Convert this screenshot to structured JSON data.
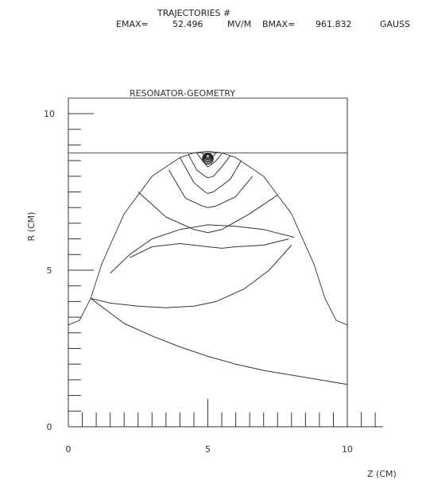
{
  "header": {
    "line1": "TRAJECTORIES #",
    "emax_label": "EMAX=",
    "emax_value": "52.496",
    "emax_unit": "MV/M",
    "bmax_label": "BMAX=",
    "bmax_value": "961.832",
    "bmax_unit": "GAUSS"
  },
  "chart_data": {
    "type": "line",
    "title": "RESONATOR-GEOMETRY",
    "xlabel": "Z (CM)",
    "ylabel": "R (CM)",
    "xlim": [
      0,
      10
    ],
    "ylim": [
      0,
      10
    ],
    "x_ticks": [
      0,
      5,
      10
    ],
    "y_ticks": [
      0,
      5,
      10
    ],
    "grid": false,
    "series": [
      {
        "role": "cavity-wall",
        "x": [
          0,
          0.4,
          0.8,
          1.2,
          2,
          3,
          4,
          4.5,
          5,
          5.5,
          6,
          7,
          8,
          8.8,
          9.2,
          9.6,
          10
        ],
        "y": [
          3.25,
          3.4,
          4.1,
          5.2,
          6.8,
          8.0,
          8.6,
          8.75,
          8.8,
          8.75,
          8.6,
          8.0,
          6.8,
          5.2,
          4.1,
          3.4,
          3.25
        ]
      },
      {
        "role": "beam-pipe",
        "x": [
          0,
          10
        ],
        "y": [
          8.75,
          8.75
        ]
      },
      {
        "role": "boundary",
        "x": [
          0,
          10
        ],
        "y": [
          10.5,
          10.5
        ]
      },
      {
        "role": "trajectory",
        "x": [
          0.8,
          2,
          3,
          4,
          5,
          6,
          7,
          8,
          9,
          10
        ],
        "y": [
          4.1,
          3.3,
          2.9,
          2.55,
          2.25,
          2.0,
          1.8,
          1.65,
          1.5,
          1.35
        ]
      },
      {
        "role": "trajectory",
        "x": [
          0.8,
          1.5,
          2.5,
          3.5,
          4.5,
          5.3,
          6.3,
          7.2,
          8
        ],
        "y": [
          4.1,
          3.95,
          3.85,
          3.8,
          3.85,
          4.0,
          4.4,
          5.0,
          5.8
        ]
      },
      {
        "role": "trajectory",
        "x": [
          1.5,
          2.2,
          3,
          4,
          5,
          6,
          7,
          8.1
        ],
        "y": [
          4.9,
          5.5,
          6.0,
          6.3,
          6.45,
          6.4,
          6.3,
          6.05
        ]
      },
      {
        "role": "trajectory",
        "x": [
          2.2,
          3,
          4,
          5,
          5.5,
          6,
          7,
          7.9
        ],
        "y": [
          5.4,
          5.75,
          5.85,
          5.75,
          5.7,
          5.75,
          5.8,
          6.0
        ]
      },
      {
        "role": "trajectory",
        "x": [
          2.5,
          3.5,
          4.5,
          5,
          5.5,
          6.5,
          7.5
        ],
        "y": [
          7.5,
          6.7,
          6.3,
          6.2,
          6.3,
          6.8,
          7.4
        ]
      },
      {
        "role": "trajectory",
        "x": [
          3.6,
          4.2,
          4.8,
          5.0,
          5.3,
          6.0,
          6.6
        ],
        "y": [
          8.2,
          7.3,
          7.05,
          7.0,
          7.05,
          7.35,
          8.0
        ]
      },
      {
        "role": "trajectory",
        "x": [
          4.0,
          4.5,
          4.9,
          5.0,
          5.2,
          5.8,
          6.2
        ],
        "y": [
          8.6,
          7.8,
          7.5,
          7.45,
          7.5,
          7.9,
          8.5
        ]
      },
      {
        "role": "trajectory",
        "x": [
          4.3,
          4.6,
          4.9,
          5.0,
          5.2,
          5.5,
          5.8
        ],
        "y": [
          8.7,
          8.2,
          8.0,
          7.95,
          8.0,
          8.3,
          8.65
        ]
      },
      {
        "role": "trajectory",
        "x": [
          4.6,
          4.8,
          4.95,
          5.0,
          5.1,
          5.3,
          5.5
        ],
        "y": [
          8.75,
          8.5,
          8.35,
          8.3,
          8.35,
          8.5,
          8.72
        ]
      },
      {
        "role": "trajectory",
        "x": [
          4.8,
          4.9,
          5.0,
          5.05,
          5.15,
          5.3
        ],
        "y": [
          8.75,
          8.62,
          8.55,
          8.55,
          8.6,
          8.75
        ]
      }
    ]
  }
}
